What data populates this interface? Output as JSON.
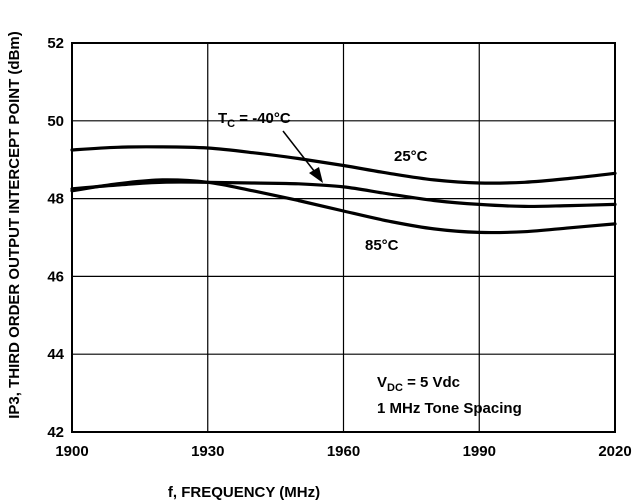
{
  "chart_data": {
    "type": "line",
    "xlabel": "f, FREQUENCY (MHz)",
    "ylabel": "IP3, THIRD ORDER OUTPUT INTERCEPT POINT (dBm)",
    "xlim": [
      1900,
      2020
    ],
    "ylim": [
      42,
      52
    ],
    "xticks": [
      1900,
      1930,
      1960,
      1990,
      2020
    ],
    "yticks": [
      42,
      44,
      46,
      48,
      50,
      52
    ],
    "grid": true,
    "series": [
      {
        "name": "25°C",
        "x": [
          1900,
          1910,
          1920,
          1930,
          1940,
          1950,
          1960,
          1970,
          1980,
          1990,
          2000,
          2010,
          2020
        ],
        "values": [
          49.25,
          49.32,
          49.33,
          49.3,
          49.18,
          49.03,
          48.85,
          48.65,
          48.48,
          48.4,
          48.42,
          48.52,
          48.65
        ]
      },
      {
        "name": "T_C = -40°C",
        "x": [
          1900,
          1910,
          1920,
          1930,
          1940,
          1950,
          1960,
          1970,
          1980,
          1990,
          2000,
          2010,
          2020
        ],
        "values": [
          48.25,
          48.35,
          48.42,
          48.42,
          48.4,
          48.38,
          48.3,
          48.12,
          47.95,
          47.85,
          47.8,
          47.82,
          47.85
        ]
      },
      {
        "name": "85°C",
        "x": [
          1900,
          1910,
          1920,
          1930,
          1940,
          1950,
          1960,
          1970,
          1980,
          1990,
          2000,
          2010,
          2020
        ],
        "values": [
          48.2,
          48.38,
          48.48,
          48.42,
          48.2,
          47.95,
          47.68,
          47.42,
          47.22,
          47.13,
          47.15,
          47.25,
          47.35
        ]
      }
    ],
    "annotations": {
      "tc_prefix": "T",
      "tc_sub": "C",
      "tc_suffix": " = -40°C",
      "label_25": "25°C",
      "label_85": "85°C",
      "vdc_prefix": "V",
      "vdc_sub": "DC",
      "vdc_suffix": " = 5 Vdc",
      "tone_spacing": "1 MHz Tone Spacing"
    }
  }
}
